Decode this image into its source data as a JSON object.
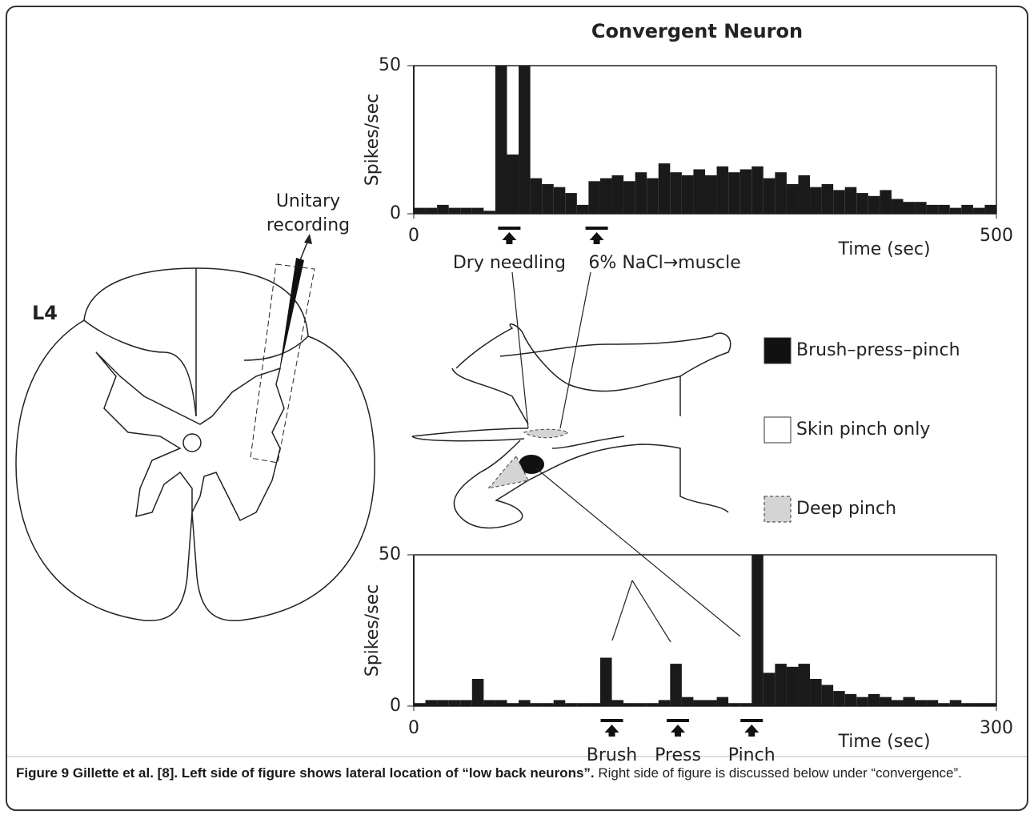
{
  "figure": {
    "label_l4": "L4",
    "recording": [
      "Unitary",
      "recording"
    ]
  },
  "chart_data": [
    {
      "type": "histogram",
      "title": "Convergent Neuron",
      "ylabel": "Spikes/sec",
      "xlabel": "Time (sec)",
      "color": "#1a1a1a",
      "xlim": [
        0,
        500
      ],
      "ylim": [
        0,
        50
      ],
      "xticks": [
        0,
        500
      ],
      "yticks": [
        0,
        50
      ],
      "bins": [
        0,
        10,
        20,
        30,
        40,
        50,
        60,
        70,
        80,
        90,
        100,
        110,
        120,
        130,
        140,
        150,
        160,
        170,
        180,
        190,
        200,
        210,
        220,
        230,
        240,
        250,
        260,
        270,
        280,
        290,
        300,
        310,
        320,
        330,
        340,
        350,
        360,
        370,
        380,
        390,
        400,
        410,
        420,
        430,
        440,
        450,
        460,
        470,
        480,
        490,
        500
      ],
      "values": [
        2,
        2,
        3,
        2,
        2,
        2,
        1,
        50,
        20,
        50,
        12,
        10,
        9,
        7,
        3,
        11,
        12,
        13,
        11,
        14,
        12,
        17,
        14,
        13,
        15,
        13,
        16,
        14,
        15,
        16,
        12,
        14,
        10,
        13,
        9,
        10,
        8,
        9,
        7,
        6,
        8,
        5,
        4,
        4,
        3,
        3,
        2,
        3,
        2,
        3
      ],
      "markers": [
        {
          "label": "Dry needling",
          "x": 82
        },
        {
          "label": "6% NaCl→muscle",
          "x": 157
        }
      ]
    },
    {
      "type": "histogram",
      "ylabel": "Spikes/sec",
      "xlabel": "Time (sec)",
      "color": "#1a1a1a",
      "xlim": [
        0,
        300
      ],
      "ylim": [
        0,
        50
      ],
      "xticks": [
        0,
        300
      ],
      "yticks": [
        0,
        50
      ],
      "bins": [
        0,
        6,
        12,
        18,
        24,
        30,
        36,
        42,
        48,
        54,
        60,
        66,
        72,
        78,
        84,
        90,
        96,
        102,
        108,
        114,
        120,
        126,
        132,
        138,
        144,
        150,
        156,
        162,
        168,
        174,
        180,
        186,
        192,
        198,
        204,
        210,
        216,
        222,
        228,
        234,
        240,
        246,
        252,
        258,
        264,
        270,
        276,
        282,
        288,
        294,
        300
      ],
      "values": [
        1,
        2,
        2,
        2,
        2,
        9,
        2,
        2,
        1,
        2,
        1,
        1,
        2,
        1,
        1,
        1,
        16,
        2,
        1,
        1,
        1,
        2,
        14,
        3,
        2,
        2,
        3,
        1,
        1,
        50,
        11,
        14,
        13,
        14,
        9,
        7,
        5,
        4,
        3,
        4,
        3,
        2,
        3,
        2,
        2,
        1,
        2,
        1,
        1,
        1
      ],
      "markers": [
        {
          "label": "Brush",
          "x": 102
        },
        {
          "label": "Press",
          "x": 136
        },
        {
          "label": "Pinch",
          "x": 174
        }
      ]
    }
  ],
  "legend": [
    {
      "label": "Brush–press–pinch",
      "fill": "#111111"
    },
    {
      "label": "Skin pinch only",
      "fill": "#ffffff"
    },
    {
      "label": "Deep pinch",
      "fill": "#d4d4d4"
    }
  ],
  "caption": {
    "bold": "Figure 9 Gillette et al. [8]. Left side of figure shows lateral location of “low back neurons”.",
    "text": " Right side of figure is discussed below under “convergence”."
  }
}
